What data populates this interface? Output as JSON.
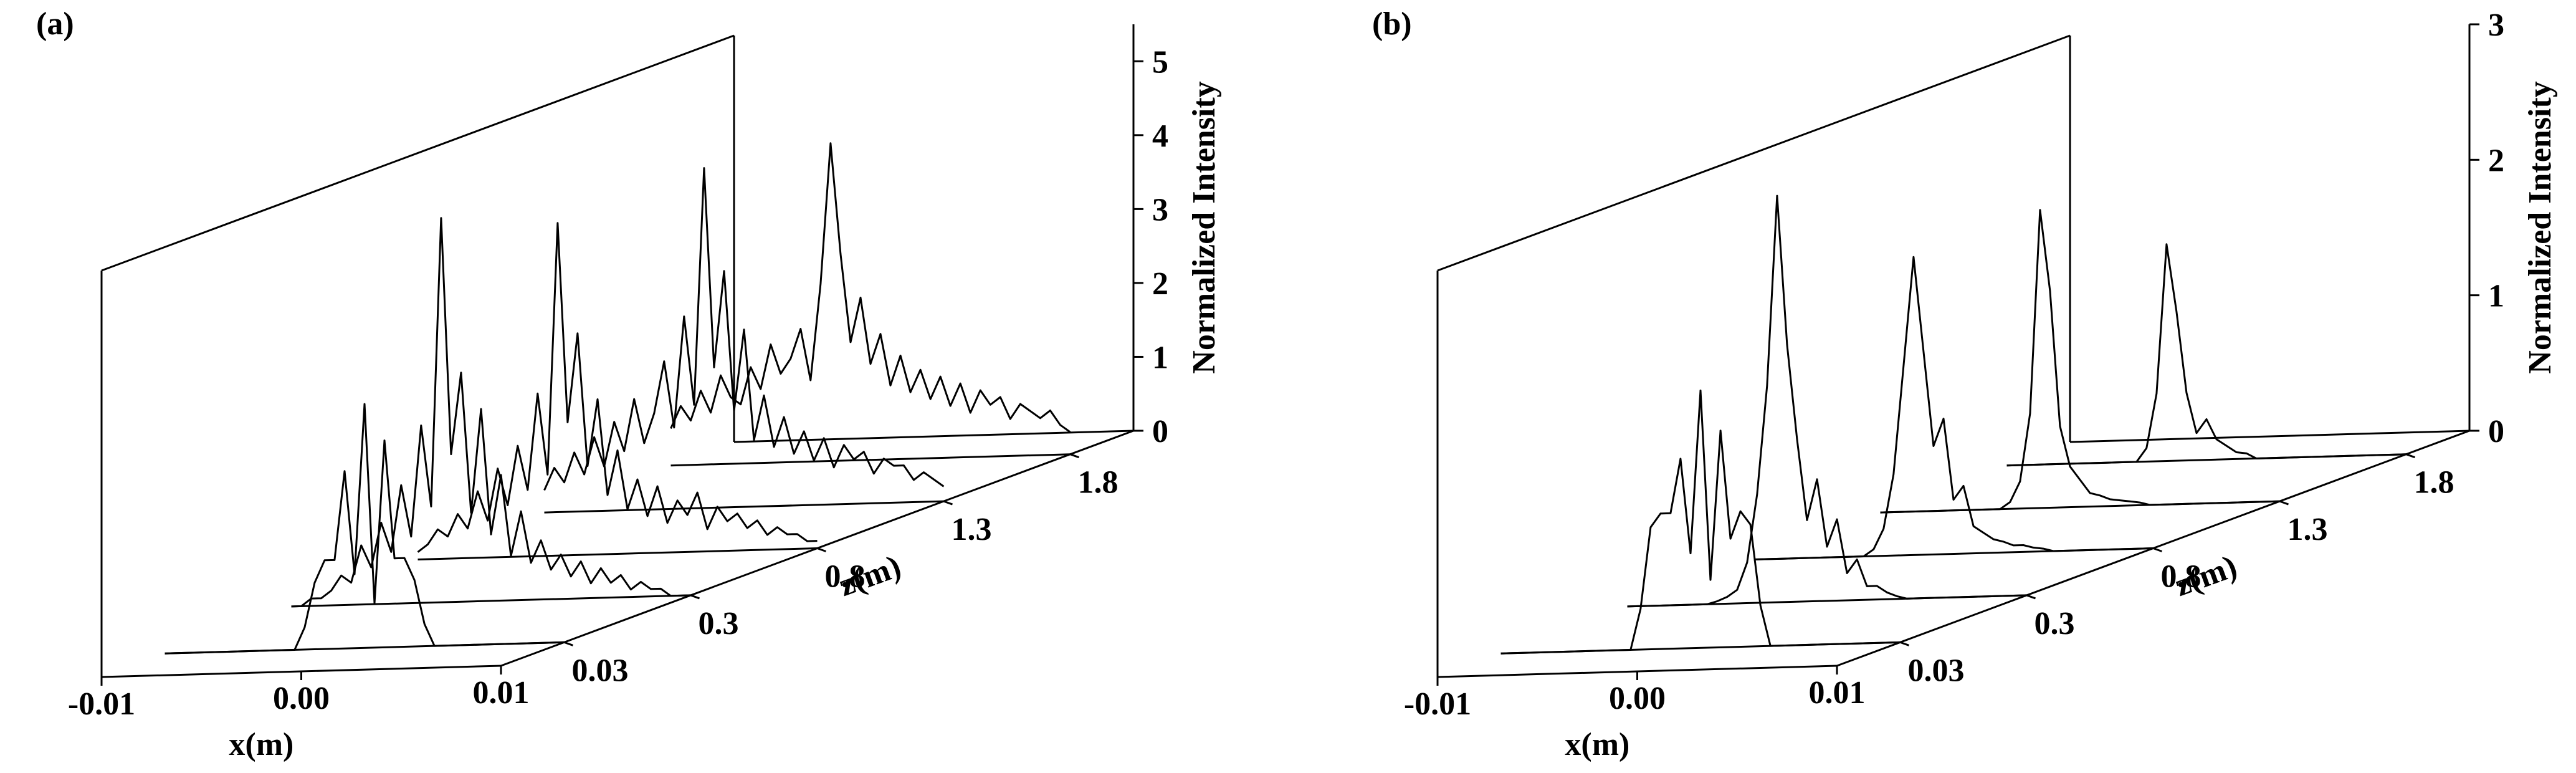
{
  "chart_data": [
    {
      "type": "waterfall",
      "title": "(a)",
      "x_label": "x(m)",
      "z_label": "z(m)",
      "y_label": "Normalized Intensity",
      "color": "#000000",
      "x": [
        -0.01,
        -0.0095,
        -0.009,
        -0.0085,
        -0.008,
        -0.0075,
        -0.007,
        -0.0065,
        -0.006,
        -0.0055,
        -0.005,
        -0.0045,
        -0.004,
        -0.0035,
        -0.003,
        -0.0025,
        -0.002,
        -0.0015,
        -0.001,
        -0.0005,
        0,
        0.0005,
        0.001,
        0.0015,
        0.002,
        0.0025,
        0.003,
        0.0035,
        0.004,
        0.0045,
        0.005,
        0.0055,
        0.006,
        0.0065,
        0.007,
        0.0075,
        0.008,
        0.0085,
        0.009,
        0.0095,
        0.01
      ],
      "xlim": [
        -0.01,
        0.01
      ],
      "xticks": [
        -0.01,
        {
          "value": 0,
          "label": "0.00"
        },
        0.01
      ],
      "z_categories": [
        "0.03",
        "0.3",
        "0.8",
        "1.3",
        "1.8"
      ],
      "ylim": [
        0,
        5.5
      ],
      "yticks": [
        0,
        1,
        2,
        3,
        4,
        5
      ],
      "series": [
        {
          "values": [
            0,
            0,
            0,
            0,
            0,
            0,
            0,
            0,
            0,
            0,
            0,
            0,
            0,
            0,
            0.3,
            0.9,
            1.2,
            1.2,
            2.4,
            1.0,
            3.3,
            0.6,
            2.8,
            1.2,
            1.2,
            0.9,
            0.3,
            0,
            0,
            0,
            0,
            0,
            0,
            0,
            0,
            0,
            0,
            0,
            0,
            0,
            0
          ]
        },
        {
          "values": [
            0,
            0,
            0.1,
            0.1,
            0.2,
            0.4,
            0.3,
            0.8,
            0.5,
            1.1,
            0.7,
            1.6,
            0.9,
            2.4,
            1.3,
            5.2,
            2.0,
            3.1,
            1.2,
            2.6,
            0.9,
            1.7,
            0.6,
            1.2,
            0.5,
            0.8,
            0.4,
            0.6,
            0.3,
            0.5,
            0.2,
            0.4,
            0.2,
            0.3,
            0.1,
            0.2,
            0.1,
            0.1,
            0,
            0,
            0
          ]
        },
        {
          "values": [
            0.1,
            0.2,
            0.4,
            0.3,
            0.6,
            0.4,
            0.9,
            0.5,
            1.2,
            0.7,
            1.5,
            0.9,
            2.2,
            1.1,
            4.5,
            1.8,
            3.0,
            1.2,
            2.1,
            0.8,
            1.4,
            0.6,
            1.0,
            0.5,
            0.9,
            0.4,
            0.7,
            0.5,
            0.8,
            0.3,
            0.6,
            0.4,
            0.5,
            0.3,
            0.4,
            0.2,
            0.3,
            0.2,
            0.2,
            0.1,
            0.1
          ]
        },
        {
          "values": [
            0.3,
            0.6,
            0.4,
            0.8,
            0.5,
            1.0,
            0.6,
            1.2,
            0.8,
            1.5,
            0.9,
            1.3,
            2.0,
            1.1,
            2.6,
            1.4,
            4.6,
            1.9,
            3.2,
            1.3,
            2.4,
            0.9,
            1.5,
            0.8,
            1.2,
            0.7,
            1.0,
            0.6,
            0.9,
            0.5,
            0.8,
            0.6,
            0.7,
            0.4,
            0.6,
            0.5,
            0.5,
            0.3,
            0.4,
            0.3,
            0.2
          ]
        },
        {
          "values": [
            0.5,
            0.8,
            0.6,
            1.0,
            0.7,
            1.2,
            0.9,
            0.8,
            1.3,
            1.0,
            1.6,
            1.2,
            1.4,
            1.8,
            1.1,
            2.4,
            4.3,
            2.8,
            1.6,
            2.2,
            1.3,
            1.7,
            1.0,
            1.4,
            0.9,
            1.2,
            0.8,
            1.1,
            0.7,
            1.0,
            0.6,
            0.9,
            0.7,
            0.8,
            0.5,
            0.7,
            0.6,
            0.5,
            0.6,
            0.4,
            0.3
          ]
        }
      ]
    },
    {
      "type": "waterfall",
      "title": "(b)",
      "x_label": "x(m)",
      "z_label": "z(m)",
      "y_label": "Normalized Intensity",
      "color": "#000000",
      "x": [
        -0.01,
        -0.0095,
        -0.009,
        -0.0085,
        -0.008,
        -0.0075,
        -0.007,
        -0.0065,
        -0.006,
        -0.0055,
        -0.005,
        -0.0045,
        -0.004,
        -0.0035,
        -0.003,
        -0.0025,
        -0.002,
        -0.0015,
        -0.001,
        -0.0005,
        0,
        0.0005,
        0.001,
        0.0015,
        0.002,
        0.0025,
        0.003,
        0.0035,
        0.004,
        0.0045,
        0.005,
        0.0055,
        0.006,
        0.0065,
        0.007,
        0.0075,
        0.008,
        0.0085,
        0.009,
        0.0095,
        0.01
      ],
      "xlim": [
        -0.01,
        0.01
      ],
      "xticks": [
        -0.01,
        {
          "value": 0,
          "label": "0.00"
        },
        0.01
      ],
      "z_categories": [
        "0.03",
        "0.3",
        "0.8",
        "1.3",
        "1.8"
      ],
      "ylim": [
        0,
        3
      ],
      "yticks": [
        0,
        1,
        2,
        3
      ],
      "series": [
        {
          "values": [
            0,
            0,
            0,
            0,
            0,
            0,
            0,
            0,
            0,
            0,
            0,
            0,
            0,
            0,
            0.3,
            0.9,
            1.0,
            1.0,
            1.4,
            0.7,
            1.9,
            0.5,
            1.6,
            0.8,
            1.0,
            0.9,
            0.3,
            0,
            0,
            0,
            0,
            0,
            0,
            0,
            0,
            0,
            0,
            0,
            0,
            0,
            0
          ]
        },
        {
          "values": [
            0,
            0,
            0,
            0,
            0,
            0,
            0,
            0,
            0,
            0.02,
            0.05,
            0.1,
            0.3,
            0.8,
            1.6,
            3.0,
            1.9,
            1.2,
            0.6,
            0.9,
            0.4,
            0.6,
            0.2,
            0.3,
            0.1,
            0.1,
            0.05,
            0.02,
            0,
            0,
            0,
            0,
            0,
            0,
            0,
            0,
            0,
            0,
            0,
            0,
            0
          ]
        },
        {
          "values": [
            0,
            0,
            0,
            0,
            0,
            0,
            0,
            0,
            0,
            0,
            0,
            0,
            0.05,
            0.2,
            0.6,
            1.4,
            2.2,
            1.5,
            0.8,
            1.0,
            0.4,
            0.5,
            0.2,
            0.15,
            0.1,
            0.08,
            0.05,
            0.05,
            0.03,
            0.02,
            0,
            0,
            0,
            0,
            0,
            0,
            0,
            0,
            0,
            0,
            0
          ]
        },
        {
          "values": [
            0,
            0,
            0,
            0,
            0,
            0,
            0,
            0,
            0,
            0,
            0,
            0,
            0,
            0.05,
            0.2,
            0.7,
            2.2,
            1.6,
            0.6,
            0.3,
            0.2,
            0.1,
            0.08,
            0.05,
            0.04,
            0.03,
            0.02,
            0,
            0,
            0,
            0,
            0,
            0,
            0,
            0,
            0,
            0,
            0,
            0,
            0,
            0
          ]
        },
        {
          "values": [
            0,
            0,
            0,
            0,
            0,
            0,
            0,
            0,
            0,
            0,
            0,
            0,
            0,
            0,
            0.1,
            0.5,
            1.6,
            1.1,
            0.5,
            0.2,
            0.3,
            0.15,
            0.1,
            0.05,
            0.04,
            0,
            0,
            0,
            0,
            0,
            0,
            0,
            0,
            0,
            0,
            0,
            0,
            0,
            0,
            0,
            0
          ]
        }
      ]
    }
  ]
}
